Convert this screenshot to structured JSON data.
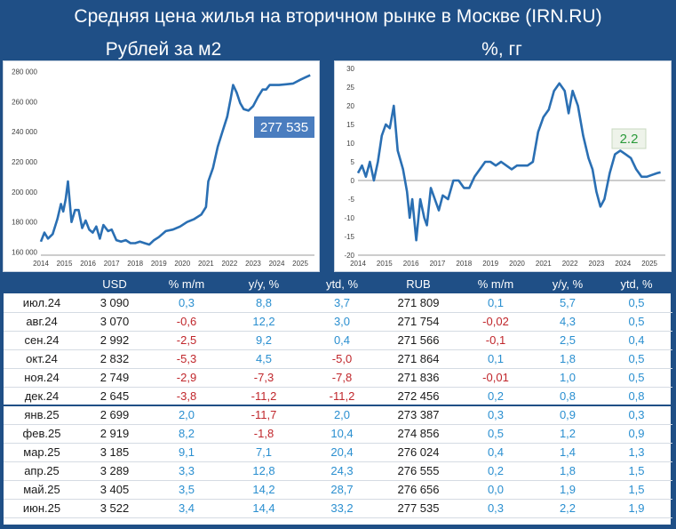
{
  "header": {
    "title": "Средняя цена жилья на вторичном рынке в Москве (IRN.RU)",
    "left_subtitle": "Рублей за м2",
    "right_subtitle": "%, гг"
  },
  "colors": {
    "background": "#1f4f86",
    "line": "#2a6fb3",
    "callout_blue": "#4a7dbf",
    "callout_green": "#2a9a3a",
    "positive": "#2a8fd0",
    "negative": "#c0262b"
  },
  "chart_data": [
    {
      "type": "line",
      "title": "Рублей за м2",
      "xlabel": "",
      "ylabel": "",
      "x_ticks": [
        "2014",
        "2015",
        "2016",
        "2017",
        "2018",
        "2019",
        "2020",
        "2021",
        "2022",
        "2023",
        "2024",
        "2025"
      ],
      "y_ticks": [
        "160 000",
        "180 000",
        "200 000",
        "220 000",
        "240 000",
        "260 000",
        "280 000"
      ],
      "ylim": [
        158000,
        282000
      ],
      "xlim": [
        2014.0,
        2025.6
      ],
      "callout": "277 535",
      "grid": false,
      "series": [
        {
          "x": [
            2014.0,
            2014.15,
            2014.3,
            2014.5,
            2014.7,
            2014.85,
            2014.95,
            2015.05,
            2015.15,
            2015.3,
            2015.45,
            2015.6,
            2015.75,
            2015.9,
            2016.05,
            2016.2,
            2016.35,
            2016.5,
            2016.65,
            2016.85,
            2017.0,
            2017.2,
            2017.4,
            2017.6,
            2017.8,
            2018.0,
            2018.2,
            2018.4,
            2018.6,
            2018.8,
            2019.0,
            2019.3,
            2019.6,
            2019.9,
            2020.2,
            2020.5,
            2020.8,
            2021.0,
            2021.1,
            2021.3,
            2021.5,
            2021.7,
            2021.9,
            2022.05,
            2022.15,
            2022.3,
            2022.45,
            2022.6,
            2022.8,
            2023.0,
            2023.2,
            2023.4,
            2023.55,
            2023.7,
            2023.9,
            2024.1,
            2024.4,
            2024.7,
            2025.0,
            2025.2,
            2025.42
          ],
          "y": [
            167000,
            173000,
            169000,
            172000,
            182000,
            192000,
            187000,
            195000,
            207000,
            180000,
            188000,
            188000,
            176000,
            181000,
            175000,
            173000,
            177000,
            169000,
            178000,
            174000,
            175000,
            168000,
            167000,
            168000,
            166000,
            166000,
            167000,
            166000,
            165000,
            168000,
            170000,
            174000,
            175000,
            177000,
            180000,
            182000,
            185000,
            190000,
            207000,
            216000,
            230000,
            240000,
            250000,
            262000,
            271000,
            266000,
            259000,
            255000,
            254000,
            257000,
            263000,
            268000,
            268000,
            271000,
            271000,
            271000,
            271500,
            272000,
            274500,
            276000,
            277535
          ]
        }
      ]
    },
    {
      "type": "line",
      "title": "%, гг",
      "xlabel": "",
      "ylabel": "",
      "x_ticks": [
        "2014",
        "2015",
        "2016",
        "2017",
        "2018",
        "2019",
        "2020",
        "2021",
        "2022",
        "2023",
        "2024",
        "2025"
      ],
      "y_ticks": [
        "-20",
        "-15",
        "-10",
        "-5",
        "0",
        "5",
        "10",
        "15",
        "20",
        "25",
        "30"
      ],
      "ylim": [
        -20,
        30
      ],
      "xlim": [
        2014.0,
        2025.6
      ],
      "callout": "2.2",
      "grid": false,
      "series": [
        {
          "x": [
            2014.0,
            2014.15,
            2014.3,
            2014.45,
            2014.6,
            2014.75,
            2014.9,
            2015.05,
            2015.2,
            2015.35,
            2015.5,
            2015.7,
            2015.85,
            2015.95,
            2016.05,
            2016.2,
            2016.35,
            2016.5,
            2016.6,
            2016.75,
            2016.9,
            2017.05,
            2017.2,
            2017.4,
            2017.6,
            2017.8,
            2018.0,
            2018.2,
            2018.4,
            2018.6,
            2018.8,
            2019.0,
            2019.2,
            2019.4,
            2019.6,
            2019.8,
            2020.0,
            2020.2,
            2020.4,
            2020.6,
            2020.8,
            2021.0,
            2021.2,
            2021.4,
            2021.6,
            2021.8,
            2021.95,
            2022.1,
            2022.3,
            2022.5,
            2022.7,
            2022.85,
            2023.0,
            2023.15,
            2023.3,
            2023.5,
            2023.7,
            2023.9,
            2024.1,
            2024.3,
            2024.5,
            2024.7,
            2024.9,
            2025.1,
            2025.3,
            2025.42
          ],
          "y": [
            2,
            4,
            1,
            5,
            0,
            5,
            12,
            15,
            14,
            20,
            8,
            3,
            -3,
            -10,
            -5,
            -16,
            -5,
            -10,
            -12,
            -2,
            -5,
            -8,
            -4,
            -5,
            0,
            0,
            -2,
            -2,
            1,
            3,
            5,
            5,
            4,
            5,
            4,
            3,
            4,
            4,
            4,
            5,
            13,
            17,
            19,
            24,
            26,
            24,
            18,
            24,
            20,
            12,
            6,
            3,
            -3,
            -7,
            -5,
            2,
            7,
            8,
            7,
            6,
            3,
            1,
            1,
            1.5,
            2,
            2.2
          ]
        }
      ]
    }
  ],
  "table": {
    "headers": [
      "",
      "USD",
      "% m/m",
      "y/y, %",
      "ytd, %",
      "RUB",
      "% m/m",
      "y/y, %",
      "ytd, %"
    ],
    "rows": [
      [
        "июл.24",
        "3 090",
        "0,3",
        "8,8",
        "3,7",
        "271 809",
        "0,1",
        "5,7",
        "0,5"
      ],
      [
        "авг.24",
        "3 070",
        "-0,6",
        "12,2",
        "3,0",
        "271 754",
        "-0,02",
        "4,3",
        "0,5"
      ],
      [
        "сен.24",
        "2 992",
        "-2,5",
        "9,2",
        "0,4",
        "271 566",
        "-0,1",
        "2,5",
        "0,4"
      ],
      [
        "окт.24",
        "2 832",
        "-5,3",
        "4,5",
        "-5,0",
        "271 864",
        "0,1",
        "1,8",
        "0,5"
      ],
      [
        "ноя.24",
        "2 749",
        "-2,9",
        "-7,3",
        "-7,8",
        "271 836",
        "-0,01",
        "1,0",
        "0,5"
      ],
      [
        "дек.24",
        "2 645",
        "-3,8",
        "-11,2",
        "-11,2",
        "272 456",
        "0,2",
        "0,8",
        "0,8"
      ],
      [
        "янв.25",
        "2 699",
        "2,0",
        "-11,7",
        "2,0",
        "273 387",
        "0,3",
        "0,9",
        "0,3"
      ],
      [
        "фев.25",
        "2 919",
        "8,2",
        "-1,8",
        "10,4",
        "274 856",
        "0,5",
        "1,2",
        "0,9"
      ],
      [
        "мар.25",
        "3 185",
        "9,1",
        "7,1",
        "20,4",
        "276 024",
        "0,4",
        "1,4",
        "1,3"
      ],
      [
        "апр.25",
        "3 289",
        "3,3",
        "12,8",
        "24,3",
        "276 555",
        "0,2",
        "1,8",
        "1,5"
      ],
      [
        "май.25",
        "3 405",
        "3,5",
        "14,2",
        "28,7",
        "276 656",
        "0,0",
        "1,9",
        "1,5"
      ],
      [
        "июн.25",
        "3 522",
        "3,4",
        "14,4",
        "33,2",
        "277 535",
        "0,3",
        "2,2",
        "1,9"
      ]
    ]
  }
}
